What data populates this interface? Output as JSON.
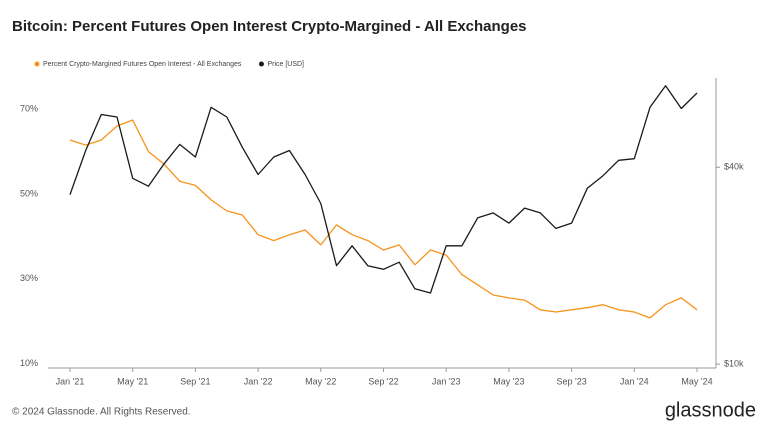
{
  "chart_data": {
    "type": "line",
    "title": "Bitcoin: Percent Futures Open Interest Crypto-Margined - All Exchanges",
    "footer": "© 2024 Glassnode. All Rights Reserved.",
    "brand": "glassnode",
    "legend": "top-left",
    "categories": [
      "Jan '21",
      null,
      null,
      null,
      "May '21",
      null,
      null,
      null,
      "Sep '21",
      null,
      null,
      null,
      "Jan '22",
      null,
      null,
      null,
      "May '22",
      null,
      null,
      null,
      "Sep '22",
      null,
      null,
      null,
      "Jan '23",
      null,
      null,
      null,
      "May '23",
      null,
      null,
      null,
      "Sep '23",
      null,
      null,
      null,
      "Jan '24",
      null,
      null,
      null,
      "May '24"
    ],
    "ylim": [
      9,
      77.3
    ],
    "yticks": [
      {
        "value": 10,
        "label": "10%"
      },
      {
        "value": 30,
        "label": "30%"
      },
      {
        "value": 50,
        "label": "50%"
      },
      {
        "value": 70,
        "label": "70%"
      }
    ],
    "y2lim": [
      9730,
      75000
    ],
    "y2_scale": "log",
    "y2ticks": [
      {
        "value": 10000,
        "label": "$10k"
      },
      {
        "value": 40000,
        "label": "$40k"
      }
    ],
    "series": [
      {
        "name": "Percent Crypto-Margined Futures Open Interest - All Exchanges",
        "color": "#f7931a",
        "values": [
          62.7,
          61.5,
          62.7,
          66,
          67.4,
          60,
          57,
          53,
          52,
          48.6,
          46,
          45,
          40.4,
          39,
          40.4,
          41.5,
          38,
          42.7,
          40.4,
          39,
          36.8,
          38,
          33.3,
          36.8,
          35.6,
          31,
          28.6,
          26.2,
          25.5,
          25,
          22.7,
          22.2,
          22.7,
          23.2,
          23.9,
          22.7,
          22.2,
          20.8,
          23.9,
          25.5,
          22.7
        ]
      },
      {
        "name": "Price [USD]",
        "color": "#1a1a1a",
        "axis": "y2",
        "values": [
          33000,
          45000,
          58000,
          57000,
          37000,
          35000,
          41000,
          47000,
          43000,
          61000,
          57000,
          46000,
          38000,
          43000,
          45000,
          38000,
          31000,
          20000,
          23000,
          20000,
          19500,
          20500,
          17000,
          16500,
          23000,
          23000,
          28000,
          29000,
          27000,
          30000,
          29000,
          26000,
          27000,
          34500,
          37700,
          42000,
          42500,
          61000,
          71000,
          60500,
          67500
        ]
      }
    ]
  }
}
